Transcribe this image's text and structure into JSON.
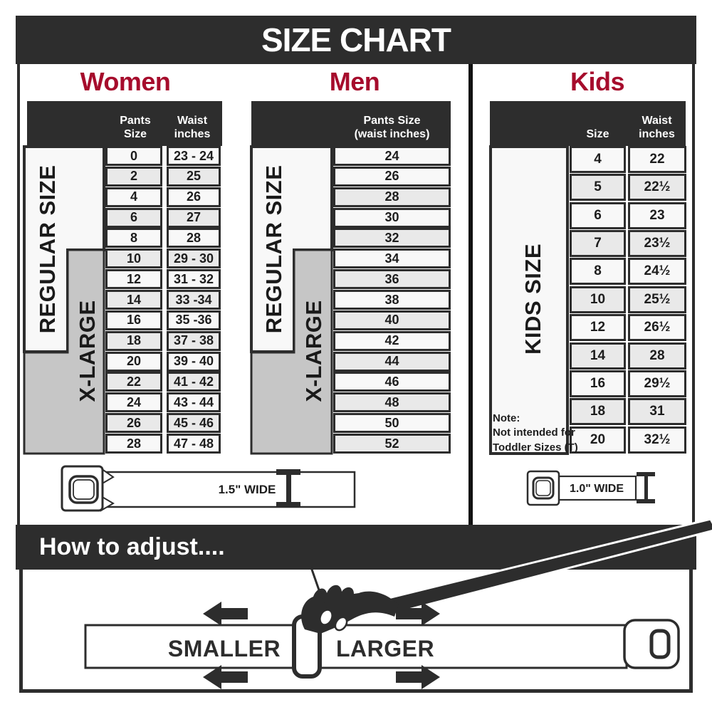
{
  "title": "SIZE CHART",
  "colors": {
    "dark": "#2d2d2d",
    "accent": "#a60c2c",
    "row_light": "#f8f8f8",
    "row_alt": "#e9e9e9",
    "gray_box": "#c6c6c6"
  },
  "sections": {
    "women": {
      "heading": "Women",
      "col1_header": "Pants Size",
      "col2_header": "Waist\ninches",
      "regular_label": "REGULAR SIZE",
      "xlarge_label": "X-LARGE",
      "rows": [
        {
          "size": "0",
          "waist": "23 - 24"
        },
        {
          "size": "2",
          "waist": "25"
        },
        {
          "size": "4",
          "waist": "26"
        },
        {
          "size": "6",
          "waist": "27"
        },
        {
          "size": "8",
          "waist": "28"
        },
        {
          "size": "10",
          "waist": "29 - 30"
        },
        {
          "size": "12",
          "waist": "31 - 32"
        },
        {
          "size": "14",
          "waist": "33 -34"
        },
        {
          "size": "16",
          "waist": "35 -36"
        },
        {
          "size": "18",
          "waist": "37 - 38"
        },
        {
          "size": "20",
          "waist": "39 - 40"
        },
        {
          "size": "22",
          "waist": "41 - 42"
        },
        {
          "size": "24",
          "waist": "43 - 44"
        },
        {
          "size": "26",
          "waist": "45 - 46"
        },
        {
          "size": "28",
          "waist": "47 - 48"
        }
      ]
    },
    "men": {
      "heading": "Men",
      "col_header": "Pants Size\n(waist inches)",
      "regular_label": "REGULAR SIZE",
      "xlarge_label": "X-LARGE",
      "rows": [
        "24",
        "26",
        "28",
        "30",
        "32",
        "34",
        "36",
        "38",
        "40",
        "42",
        "44",
        "46",
        "48",
        "50",
        "52"
      ]
    },
    "kids": {
      "heading": "Kids",
      "col1_header": "Size",
      "col2_header": "Waist\ninches",
      "label": "KIDS SIZE",
      "note": "Note:\nNot intended for\nToddler Sizes (T)",
      "rows": [
        {
          "size": "4",
          "waist": "22"
        },
        {
          "size": "5",
          "waist": "22½"
        },
        {
          "size": "6",
          "waist": "23"
        },
        {
          "size": "7",
          "waist": "23½"
        },
        {
          "size": "8",
          "waist": "24½"
        },
        {
          "size": "10",
          "waist": "25½"
        },
        {
          "size": "12",
          "waist": "26½"
        },
        {
          "size": "14",
          "waist": "28"
        },
        {
          "size": "16",
          "waist": "29½"
        },
        {
          "size": "18",
          "waist": "31"
        },
        {
          "size": "20",
          "waist": "32½"
        }
      ]
    }
  },
  "belts": {
    "adult_width_label": "1.5\" WIDE",
    "kids_width_label": "1.0\" WIDE"
  },
  "adjust": {
    "heading": "How to adjust....",
    "smaller_label": "SMALLER",
    "larger_label": "LARGER"
  },
  "chart_data": [
    {
      "type": "table",
      "title": "Women",
      "columns": [
        "Pants Size",
        "Waist inches"
      ],
      "rows": [
        [
          "0",
          "23 - 24"
        ],
        [
          "2",
          "25"
        ],
        [
          "4",
          "26"
        ],
        [
          "6",
          "27"
        ],
        [
          "8",
          "28"
        ],
        [
          "10",
          "29 - 30"
        ],
        [
          "12",
          "31 - 32"
        ],
        [
          "14",
          "33 -34"
        ],
        [
          "16",
          "35 -36"
        ],
        [
          "18",
          "37 - 38"
        ],
        [
          "20",
          "39 - 40"
        ],
        [
          "22",
          "41 - 42"
        ],
        [
          "24",
          "43 - 44"
        ],
        [
          "26",
          "45 - 46"
        ],
        [
          "28",
          "47 - 48"
        ]
      ],
      "groups": {
        "REGULAR SIZE": [
          "0",
          "2",
          "4",
          "6",
          "8",
          "10",
          "12",
          "14",
          "16",
          "18"
        ],
        "X-LARGE": [
          "10",
          "12",
          "14",
          "16",
          "18",
          "20",
          "22",
          "24",
          "26",
          "28"
        ]
      }
    },
    {
      "type": "table",
      "title": "Men",
      "columns": [
        "Pants Size (waist inches)"
      ],
      "rows": [
        [
          "24"
        ],
        [
          "26"
        ],
        [
          "28"
        ],
        [
          "30"
        ],
        [
          "32"
        ],
        [
          "34"
        ],
        [
          "36"
        ],
        [
          "38"
        ],
        [
          "40"
        ],
        [
          "42"
        ],
        [
          "44"
        ],
        [
          "46"
        ],
        [
          "48"
        ],
        [
          "50"
        ],
        [
          "52"
        ]
      ],
      "groups": {
        "REGULAR SIZE": [
          "24",
          "26",
          "28",
          "30",
          "32",
          "34",
          "36",
          "38",
          "40",
          "42"
        ],
        "X-LARGE": [
          "34",
          "36",
          "38",
          "40",
          "42",
          "44",
          "46",
          "48",
          "50",
          "52"
        ]
      }
    },
    {
      "type": "table",
      "title": "Kids",
      "columns": [
        "Size",
        "Waist inches"
      ],
      "rows": [
        [
          "4",
          "22"
        ],
        [
          "5",
          "22½"
        ],
        [
          "6",
          "23"
        ],
        [
          "7",
          "23½"
        ],
        [
          "8",
          "24½"
        ],
        [
          "10",
          "25½"
        ],
        [
          "12",
          "26½"
        ],
        [
          "14",
          "28"
        ],
        [
          "16",
          "29½"
        ],
        [
          "18",
          "31"
        ],
        [
          "20",
          "32½"
        ]
      ],
      "groups": {
        "KIDS SIZE": [
          "4",
          "5",
          "6",
          "7",
          "8",
          "10",
          "12",
          "14",
          "16",
          "18",
          "20"
        ]
      }
    }
  ]
}
